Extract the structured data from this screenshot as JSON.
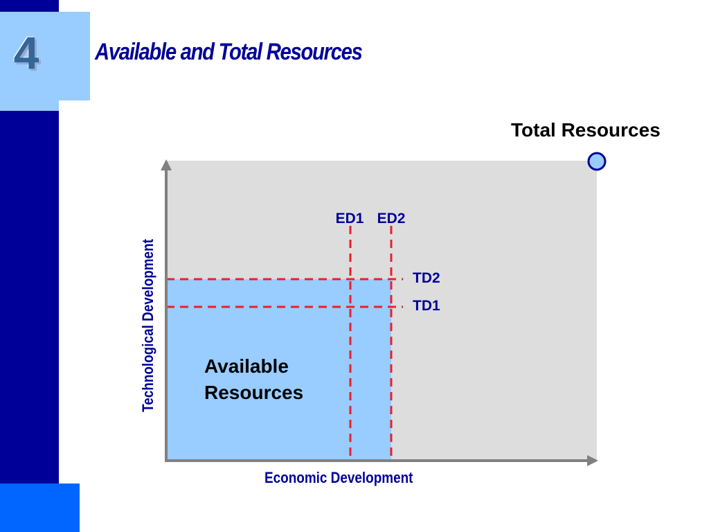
{
  "slide": {
    "number": "4",
    "title": "Available and Total Resources"
  },
  "diagram": {
    "total_label": "Total Resources",
    "available_label_line1": "Available",
    "available_label_line2": "Resources",
    "x_axis_label": "Economic Development",
    "y_axis_label": "Technological Development",
    "ed_lines": [
      {
        "label": "ED1"
      },
      {
        "label": "ED2"
      }
    ],
    "td_lines": [
      {
        "label": "TD2"
      },
      {
        "label": "TD1"
      }
    ],
    "colors": {
      "total_area": "#dddddd",
      "available_area": "#99ccff",
      "dashed_lines": "#e8212b",
      "axis": "#808080",
      "marker_fill": "#99ccff",
      "marker_stroke": "#000099"
    }
  }
}
